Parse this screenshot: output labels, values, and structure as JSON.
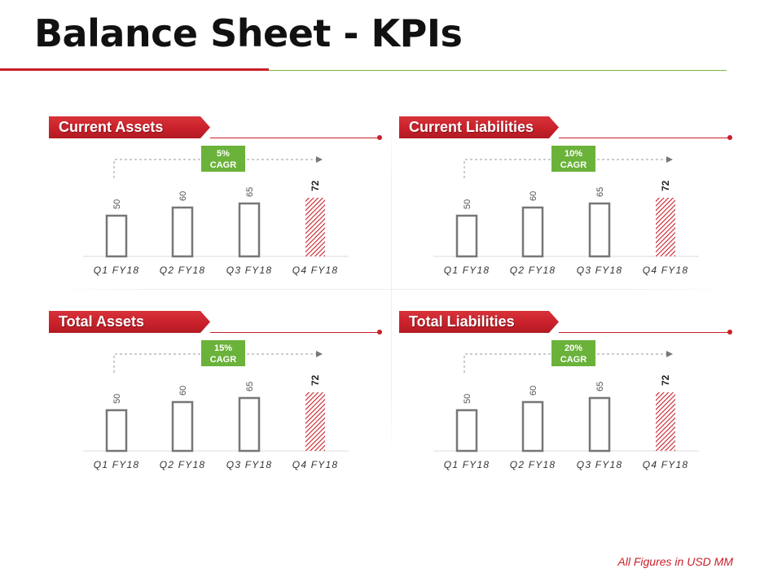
{
  "title": "Balance Sheet - KPIs",
  "footnote": "All Figures in USD MM",
  "colors": {
    "accent_red": "#c8202a",
    "accent_green": "#7cb342",
    "cagr_green": "#6ab23a",
    "bar_outline": "#777777"
  },
  "chart_data": [
    {
      "type": "bar",
      "title": "Current Assets",
      "cagr": "5%",
      "cagr_label": "CAGR",
      "categories": [
        "Q1 FY18",
        "Q2 FY18",
        "Q3 FY18",
        "Q4 FY18"
      ],
      "values": [
        50,
        60,
        65,
        72
      ],
      "ylim": [
        0,
        110
      ],
      "highlight_index": 3
    },
    {
      "type": "bar",
      "title": "Current Liabilities",
      "cagr": "10%",
      "cagr_label": "CAGR",
      "categories": [
        "Q1 FY18",
        "Q2 FY18",
        "Q3 FY18",
        "Q4 FY18"
      ],
      "values": [
        50,
        60,
        65,
        72
      ],
      "ylim": [
        0,
        110
      ],
      "highlight_index": 3
    },
    {
      "type": "bar",
      "title": "Total Assets",
      "cagr": "15%",
      "cagr_label": "CAGR",
      "categories": [
        "Q1 FY18",
        "Q2 FY18",
        "Q3 FY18",
        "Q4 FY18"
      ],
      "values": [
        50,
        60,
        65,
        72
      ],
      "ylim": [
        0,
        110
      ],
      "highlight_index": 3
    },
    {
      "type": "bar",
      "title": "Total Liabilities",
      "cagr": "20%",
      "cagr_label": "CAGR",
      "categories": [
        "Q1 FY18",
        "Q2 FY18",
        "Q3 FY18",
        "Q4 FY18"
      ],
      "values": [
        50,
        60,
        65,
        72
      ],
      "ylim": [
        0,
        110
      ],
      "highlight_index": 3
    }
  ]
}
